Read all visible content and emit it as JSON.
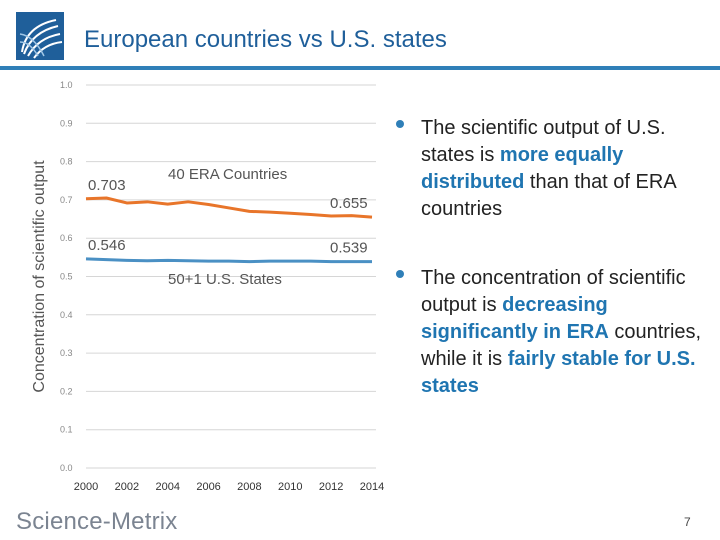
{
  "header": {
    "title": "European countries vs U.S. states"
  },
  "chart_data": {
    "type": "line",
    "title": "",
    "xlabel": "",
    "ylabel": "Concentration of scientific output",
    "x": [
      2000,
      2001,
      2002,
      2003,
      2004,
      2005,
      2006,
      2007,
      2008,
      2009,
      2010,
      2011,
      2012,
      2013,
      2014
    ],
    "xtick_labels": [
      "2000",
      "2002",
      "2004",
      "2006",
      "2008",
      "2010",
      "2012",
      "2014"
    ],
    "ylim": [
      0.0,
      1.0
    ],
    "ytick_labels": [
      "0.0",
      "0.1",
      "0.2",
      "0.3",
      "0.4",
      "0.5",
      "0.6",
      "0.7",
      "0.8",
      "0.9",
      "1.0"
    ],
    "grid": true,
    "series": [
      {
        "name": "40 ERA Countries",
        "color": "#e8752a",
        "values": [
          0.703,
          0.705,
          0.692,
          0.695,
          0.689,
          0.695,
          0.688,
          0.679,
          0.67,
          0.668,
          0.665,
          0.662,
          0.658,
          0.659,
          0.655
        ],
        "start_label": "0.703",
        "end_label": "0.655"
      },
      {
        "name": "50+1 U.S. States",
        "color": "#4a90c4",
        "values": [
          0.546,
          0.544,
          0.542,
          0.541,
          0.542,
          0.541,
          0.54,
          0.54,
          0.539,
          0.54,
          0.54,
          0.54,
          0.539,
          0.539,
          0.539
        ],
        "start_label": "0.546",
        "end_label": "0.539"
      }
    ]
  },
  "bullets": [
    {
      "parts": [
        {
          "text": "The scientific output of U.S. states is ",
          "hl": false
        },
        {
          "text": "more equally distributed",
          "hl": true
        },
        {
          "text": " than that of ERA countries",
          "hl": false
        }
      ]
    },
    {
      "parts": [
        {
          "text": "The concentration of scientific output is ",
          "hl": false
        },
        {
          "text": "decreasing significantly in ERA",
          "hl": true
        },
        {
          "text": " countries, while it is ",
          "hl": false
        },
        {
          "text": "fairly stable for U.S. states",
          "hl": true
        }
      ]
    }
  ],
  "footer": {
    "brand": "Science-Metrix",
    "page_number": "7"
  },
  "colors": {
    "accent": "#2f7fb8",
    "title": "#1f5f9a",
    "highlight": "#1f75b1"
  },
  "icons": {
    "logo": "science-metrix-logo-icon"
  }
}
